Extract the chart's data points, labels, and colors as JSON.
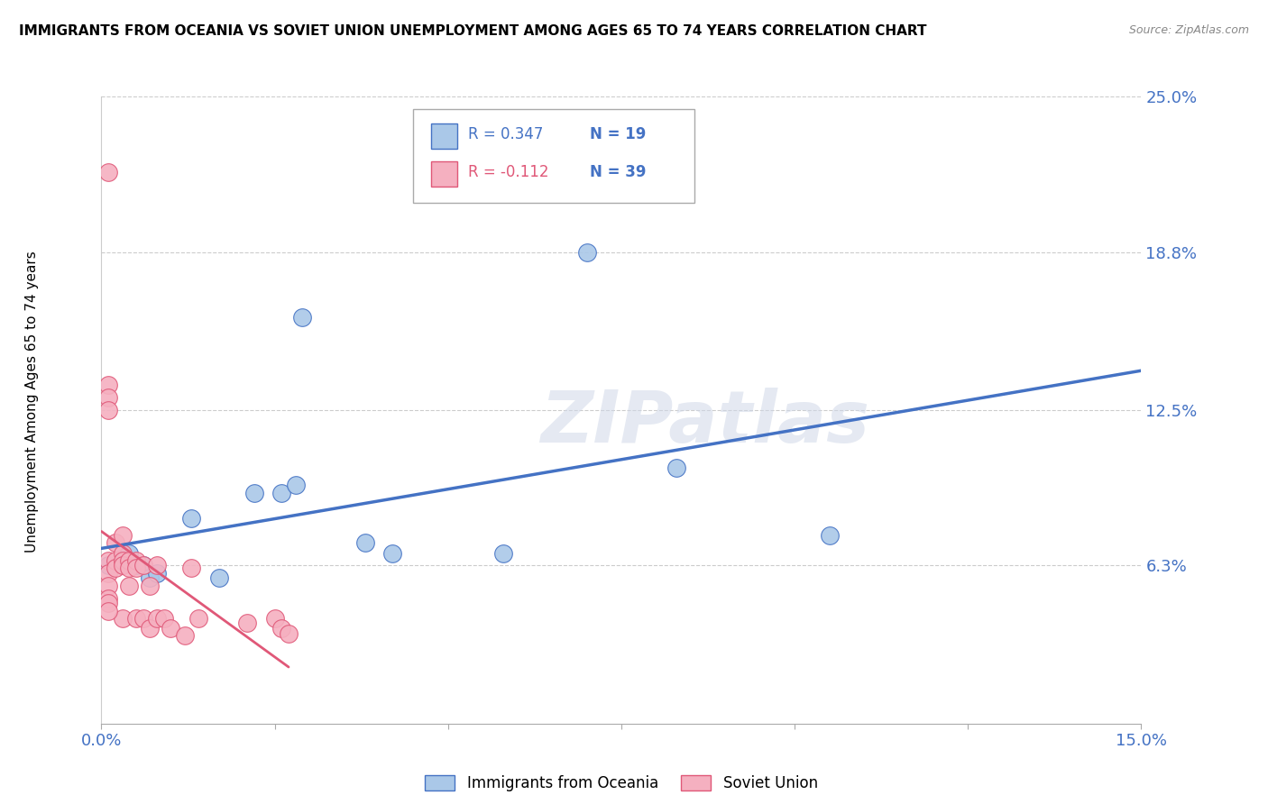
{
  "title": "IMMIGRANTS FROM OCEANIA VS SOVIET UNION UNEMPLOYMENT AMONG AGES 65 TO 74 YEARS CORRELATION CHART",
  "source": "Source: ZipAtlas.com",
  "ylabel_label": "Unemployment Among Ages 65 to 74 years",
  "xlim": [
    0.0,
    0.15
  ],
  "ylim": [
    0.0,
    0.25
  ],
  "oceania_color": "#aac8e8",
  "soviet_color": "#f5b0c0",
  "line_oceania": "#4472c4",
  "line_soviet": "#e05878",
  "watermark": "ZIPatlas",
  "oceania_x": [
    0.001,
    0.003,
    0.004,
    0.005,
    0.006,
    0.007,
    0.008,
    0.013,
    0.017,
    0.022,
    0.026,
    0.028,
    0.029,
    0.038,
    0.042,
    0.058,
    0.07,
    0.083,
    0.105
  ],
  "oceania_y": [
    0.063,
    0.065,
    0.068,
    0.063,
    0.063,
    0.058,
    0.06,
    0.082,
    0.058,
    0.092,
    0.092,
    0.095,
    0.162,
    0.072,
    0.068,
    0.068,
    0.188,
    0.102,
    0.075
  ],
  "soviet_x": [
    0.001,
    0.001,
    0.001,
    0.001,
    0.001,
    0.001,
    0.001,
    0.002,
    0.002,
    0.002,
    0.003,
    0.003,
    0.003,
    0.003,
    0.003,
    0.004,
    0.004,
    0.004,
    0.005,
    0.005,
    0.005,
    0.006,
    0.006,
    0.007,
    0.007,
    0.008,
    0.008,
    0.009,
    0.01,
    0.012,
    0.013,
    0.014,
    0.021,
    0.025,
    0.026,
    0.027,
    0.001,
    0.001,
    0.001
  ],
  "soviet_y": [
    0.22,
    0.135,
    0.13,
    0.125,
    0.065,
    0.06,
    0.055,
    0.072,
    0.065,
    0.062,
    0.075,
    0.068,
    0.065,
    0.063,
    0.042,
    0.065,
    0.062,
    0.055,
    0.065,
    0.062,
    0.042,
    0.063,
    0.042,
    0.055,
    0.038,
    0.063,
    0.042,
    0.042,
    0.038,
    0.035,
    0.062,
    0.042,
    0.04,
    0.042,
    0.038,
    0.036,
    0.05,
    0.048,
    0.045
  ]
}
